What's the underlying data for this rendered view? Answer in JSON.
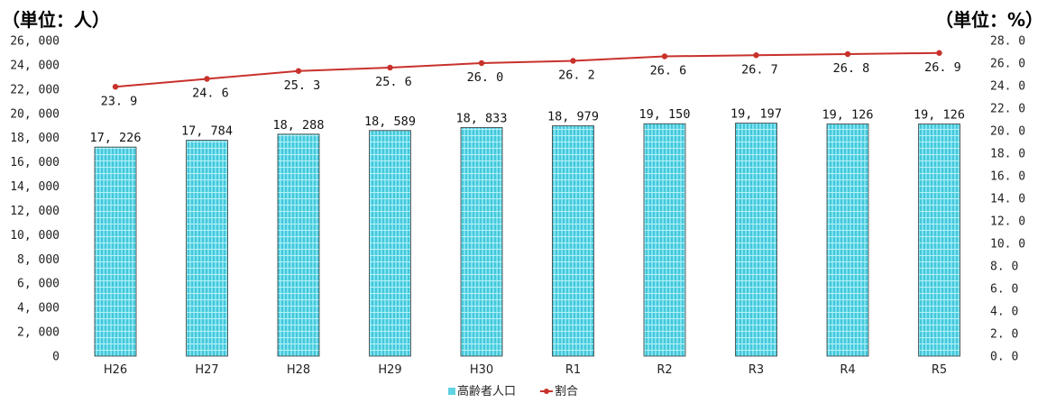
{
  "units": {
    "left": "（単位：人）",
    "right": "（単位：%）"
  },
  "chart_data": {
    "type": "bar+line",
    "categories": [
      "H26",
      "H27",
      "H28",
      "H29",
      "H30",
      "R1",
      "R2",
      "R3",
      "R4",
      "R5"
    ],
    "series": [
      {
        "name": "高齢者人口",
        "type": "bar",
        "axis": "left",
        "color": "#5fd3e3",
        "values": [
          17226,
          17784,
          18288,
          18589,
          18833,
          18979,
          19150,
          19197,
          19126,
          19126
        ],
        "labels": [
          "17, 226",
          "17, 784",
          "18, 288",
          "18, 589",
          "18, 833",
          "18, 979",
          "19, 150",
          "19, 197",
          "19, 126",
          "19, 126"
        ]
      },
      {
        "name": "割合",
        "type": "line",
        "axis": "right",
        "color": "#c8312c",
        "values": [
          23.9,
          24.6,
          25.3,
          25.6,
          26.0,
          26.2,
          26.6,
          26.7,
          26.8,
          26.9
        ],
        "labels": [
          "23. 9",
          "24. 6",
          "25. 3",
          "25. 6",
          "26. 0",
          "26. 2",
          "26. 6",
          "26. 7",
          "26. 8",
          "26. 9"
        ]
      }
    ],
    "y_left": {
      "range": [
        0,
        26000
      ],
      "ticks": [
        "0",
        "2, 000",
        "4, 000",
        "6, 000",
        "8, 000",
        "10, 000",
        "12, 000",
        "14, 000",
        "16, 000",
        "18, 000",
        "20, 000",
        "22, 000",
        "24, 000",
        "26, 000"
      ]
    },
    "y_right": {
      "range": [
        0,
        28
      ],
      "ticks": [
        "0. 0",
        "2. 0",
        "4. 0",
        "6. 0",
        "8. 0",
        "10. 0",
        "12. 0",
        "14. 0",
        "16. 0",
        "18. 0",
        "20. 0",
        "22. 0",
        "24. 0",
        "26. 0",
        "28. 0"
      ]
    },
    "grid": false,
    "legend_position": "bottom-center"
  }
}
